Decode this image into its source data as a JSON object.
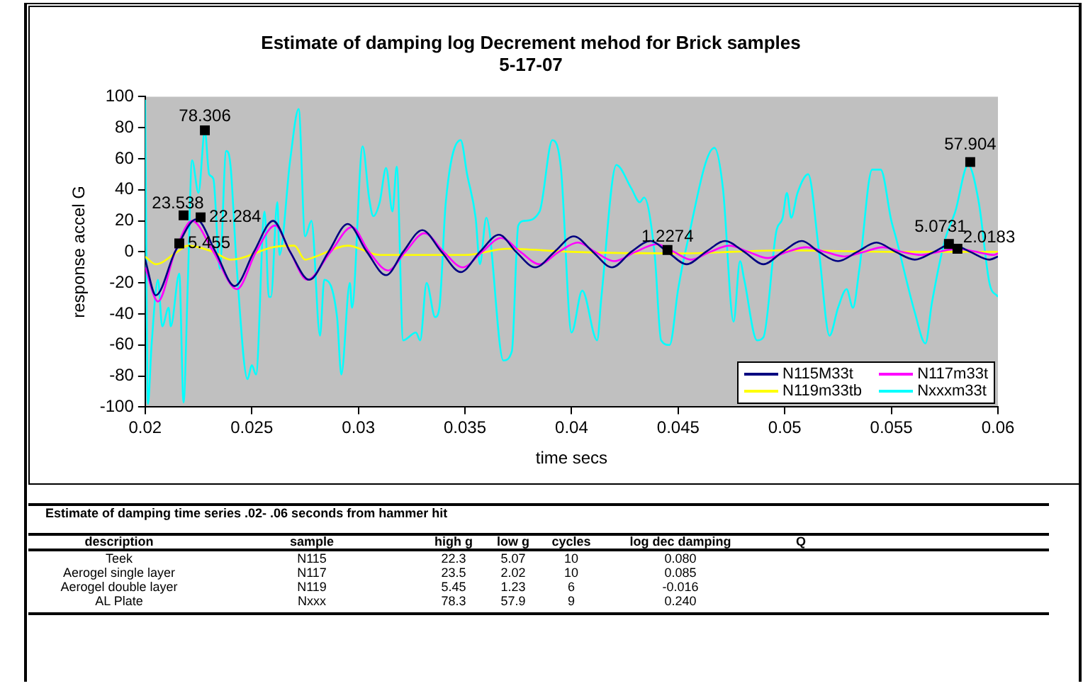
{
  "chart_data": {
    "type": "line",
    "title": "Estimate of damping log Decrement mehod for Brick samples",
    "subtitle": "5-17-07",
    "xlabel": "time secs",
    "ylabel": "response accel G",
    "xlim": [
      0.02,
      0.06
    ],
    "xticks": [
      0.02,
      0.025,
      0.03,
      0.035,
      0.04,
      0.045,
      0.05,
      0.055,
      0.06
    ],
    "ylim": [
      -100,
      100
    ],
    "yticks": [
      -100,
      -80,
      -60,
      -40,
      -20,
      0,
      20,
      40,
      60,
      80,
      100
    ],
    "legend": "bottom right",
    "marker": "none",
    "line_style": "solid",
    "series": [
      {
        "name": "N115M33t",
        "color": "#000080",
        "x": [
          0.02,
          0.0205,
          0.0214,
          0.0224,
          0.0233,
          0.0242,
          0.0251,
          0.026,
          0.0268,
          0.0277,
          0.0286,
          0.0295,
          0.0304,
          0.0313,
          0.0321,
          0.033,
          0.0339,
          0.0348,
          0.0357,
          0.0366,
          0.0374,
          0.0383,
          0.0392,
          0.0401,
          0.041,
          0.0419,
          0.0428,
          0.0437,
          0.0445,
          0.0454,
          0.0463,
          0.0472,
          0.0481,
          0.049,
          0.0499,
          0.0508,
          0.0516,
          0.0525,
          0.0534,
          0.0543,
          0.0552,
          0.0561,
          0.057,
          0.0578,
          0.0587,
          0.0596,
          0.06
        ],
        "values": [
          -5,
          -28,
          0,
          21,
          0,
          -22,
          0,
          20,
          0,
          -18,
          0,
          18,
          0,
          -15,
          0,
          14,
          0,
          -13,
          0,
          11,
          0,
          -10,
          0,
          10,
          0,
          -10,
          0,
          7,
          0,
          -8,
          0,
          7,
          0,
          -8,
          0,
          7,
          0,
          -6,
          0,
          6,
          0,
          -5,
          0,
          5,
          0,
          -5,
          -3
        ]
      },
      {
        "name": "N117m33t",
        "color": "#ff00ff",
        "x": [
          0.02,
          0.0206,
          0.0214,
          0.0222,
          0.0232,
          0.0243,
          0.0252,
          0.0261,
          0.0268,
          0.0276,
          0.0287,
          0.0297,
          0.0305,
          0.0314,
          0.0322,
          0.0331,
          0.034,
          0.0349,
          0.0358,
          0.0367,
          0.0376,
          0.0385,
          0.0394,
          0.0403,
          0.0411,
          0.042,
          0.043,
          0.044,
          0.0448,
          0.0456,
          0.0465,
          0.0474,
          0.0483,
          0.0492,
          0.0501,
          0.051,
          0.0519,
          0.0528,
          0.0537,
          0.0546,
          0.0555,
          0.0564,
          0.0572,
          0.0581,
          0.059,
          0.0598,
          0.06
        ],
        "values": [
          -10,
          -32,
          0,
          20,
          0,
          -24,
          0,
          17,
          0,
          -18,
          0,
          16,
          0,
          -12,
          0,
          12,
          0,
          -10,
          0,
          9,
          0,
          -8,
          0,
          6,
          0,
          -6,
          0,
          5,
          0,
          -5,
          0,
          4,
          0,
          -4,
          0,
          3,
          0,
          -3,
          0,
          3,
          0,
          -2,
          0,
          2,
          0,
          -2,
          -1
        ]
      },
      {
        "name": "N119m33tb",
        "color": "#ffff00",
        "x": [
          0.02,
          0.0205,
          0.0215,
          0.022,
          0.0232,
          0.024,
          0.0245,
          0.026,
          0.027,
          0.0275,
          0.028,
          0.0295,
          0.031,
          0.035,
          0.037,
          0.04,
          0.045,
          0.05,
          0.055,
          0.06
        ],
        "values": [
          -3,
          -8,
          0,
          4,
          0,
          -5,
          -4,
          3,
          4,
          -5,
          -3,
          4,
          -2,
          -2,
          2,
          0,
          -1,
          1,
          0,
          0
        ]
      },
      {
        "name": "Nxxxm33t",
        "color": "#00ffff",
        "x": [
          0.02,
          0.02013,
          0.0203,
          0.0206,
          0.0208,
          0.0211,
          0.0212,
          0.0216,
          0.0218,
          0.022,
          0.0222,
          0.0225,
          0.0228,
          0.023,
          0.0232,
          0.0235,
          0.0238,
          0.024,
          0.0243,
          0.0248,
          0.025,
          0.0252,
          0.0256,
          0.0258,
          0.0259,
          0.0262,
          0.0263,
          0.0268,
          0.0272,
          0.0275,
          0.0278,
          0.0282,
          0.0284,
          0.029,
          0.0292,
          0.0296,
          0.0297,
          0.0302,
          0.0305,
          0.0307,
          0.031,
          0.0313,
          0.0316,
          0.0318,
          0.0321,
          0.0327,
          0.0329,
          0.0332,
          0.0336,
          0.0338,
          0.0341,
          0.0348,
          0.0351,
          0.0355,
          0.0357,
          0.036,
          0.0368,
          0.0372,
          0.0375,
          0.0378,
          0.0385,
          0.0391,
          0.0395,
          0.04,
          0.0405,
          0.0412,
          0.0414,
          0.0421,
          0.0428,
          0.0432,
          0.0434,
          0.0439,
          0.0442,
          0.0446,
          0.045,
          0.0454,
          0.0467,
          0.0471,
          0.0476,
          0.0479,
          0.0481,
          0.0487,
          0.049,
          0.0496,
          0.0499,
          0.0501,
          0.0503,
          0.0506,
          0.0511,
          0.0516,
          0.0521,
          0.0525,
          0.0529,
          0.0532,
          0.0535,
          0.0541,
          0.0545,
          0.055,
          0.0552,
          0.0561,
          0.0566,
          0.0569,
          0.0575,
          0.058,
          0.0586,
          0.0591,
          0.0596,
          0.06
        ],
        "values": [
          98,
          -98,
          -60,
          -18,
          -48,
          -36,
          -48,
          -14,
          -97,
          -20,
          59,
          38,
          78,
          50,
          47,
          -11,
          65,
          56,
          -11,
          -82,
          -73,
          -79,
          26,
          -29,
          -29,
          32,
          -2,
          59,
          92,
          10,
          20,
          -54,
          -18,
          -42,
          -79,
          -20,
          -36,
          68,
          35,
          23,
          32,
          54,
          26,
          55,
          -57,
          -52,
          -57,
          -20,
          -42,
          -36,
          32,
          72,
          50,
          22,
          -8,
          22,
          -70,
          -64,
          17,
          20,
          26,
          72,
          54,
          -52,
          -25,
          -57,
          -29,
          56,
          41,
          32,
          35,
          -2,
          -57,
          -60,
          -24,
          4,
          67,
          41,
          -45,
          -6,
          -18,
          -57,
          -55,
          13,
          22,
          38,
          22,
          38,
          50,
          1,
          -54,
          -36,
          -24,
          -36,
          -11,
          53,
          53,
          20,
          10,
          -39,
          -59,
          -33,
          7,
          26,
          56,
          32,
          -20,
          -29
        ]
      },
      {
        "type": "scatter",
        "marker": "square",
        "color": "#000000",
        "x": [
          0.0216,
          0.0218,
          0.0226,
          0.0228,
          0.0445,
          0.0577,
          0.0581,
          0.0587
        ],
        "values": [
          5.455,
          23.538,
          22.284,
          78.306,
          1.2274,
          5.0731,
          2.0183,
          57.904
        ],
        "value_labels": [
          "5.455",
          "23.538",
          "22.284",
          "78.306",
          "1.2274",
          "5.0731",
          "2.0183",
          "57.904"
        ]
      }
    ],
    "annotations": [
      "Estimate of damping time series .02- .06 seconds from hammer hit",
      "description",
      "sample",
      "high g",
      "low g",
      "cycles",
      "log dec damping",
      "Q",
      "Teek",
      "N115",
      "22.3",
      "5.07",
      "10",
      "0.080",
      "Aerogel single layer",
      "N117",
      "23.5",
      "2.02",
      "10",
      "0.085",
      "Aerogel double layer",
      "N119",
      "5.45",
      "1.23",
      "6",
      "-0.016",
      "AL Plate",
      "Nxxx",
      "78.3",
      "57.9",
      "9",
      "0.240"
    ]
  }
}
